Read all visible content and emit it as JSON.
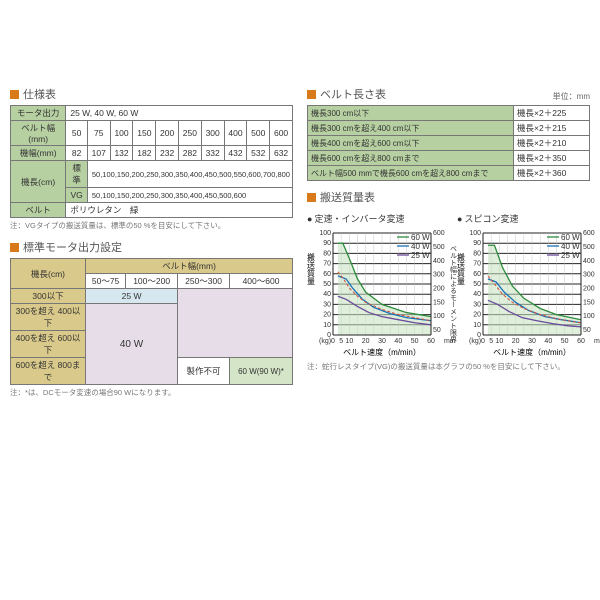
{
  "headings": {
    "spec": "仕様表",
    "belt_len": "ベルト長さ表",
    "motor_std": "標準モータ出力設定",
    "capacity": "搬送質量表",
    "chart_inv": "定速・インバータ変速",
    "chart_spk": "スピコン変速",
    "unit_mm": "単位：mm"
  },
  "spec": {
    "rows": {
      "motor_out": {
        "label": "モータ出力",
        "value": "25 W, 40 W, 60 W"
      },
      "belt_w": {
        "label": "ベルト幅(mm)",
        "cells": [
          "50",
          "75",
          "100",
          "150",
          "200",
          "250",
          "300",
          "400",
          "500",
          "600"
        ]
      },
      "mach_w": {
        "label": "機幅(mm)",
        "cells": [
          "82",
          "107",
          "132",
          "182",
          "232",
          "282",
          "332",
          "432",
          "532",
          "632"
        ]
      },
      "len_std": {
        "label1": "機長(cm)",
        "label2": "標準",
        "value": "50,100,150,200,250,300,350,400,450,500,550,600,700,800"
      },
      "len_vg": {
        "label2": "VG",
        "value": "50,100,150,200,250,300,350,400,450,500,600"
      },
      "belt": {
        "label": "ベルト",
        "value": "ポリウレタン　緑"
      }
    },
    "note": "注：VGタイプの搬送質量は、標準の50 %を目安にして下さい。"
  },
  "belt_len": {
    "rows": [
      {
        "l": "機長300 cm以下",
        "r": "機長×2＋225"
      },
      {
        "l": "機長300 cmを超え400 cm以下",
        "r": "機長×2＋215"
      },
      {
        "l": "機長400 cmを超え600 cm以下",
        "r": "機長×2＋210"
      },
      {
        "l": "機長600 cmを超え800 cmまで",
        "r": "機長×2＋350"
      },
      {
        "l": "ベルト幅500 mmで機長600 cmを超え800 cmまで",
        "r": "機長×2＋360"
      }
    ]
  },
  "motor_std": {
    "col_hdr": "ベルト幅(mm)",
    "row_hdr": "機長(cm)",
    "cols": [
      "50～75",
      "100～200",
      "250～300",
      "400～600"
    ],
    "rows": [
      "300以下",
      "300を超え 400以下",
      "400を超え 600以下",
      "600を超え 800まで"
    ],
    "w25": "25 W",
    "w40": "40 W",
    "w60": "60 W(90 W)*",
    "na": "製作不可",
    "note": "注：*は、DCモータ変速の場合90 Wになります。"
  },
  "charts": {
    "ylabel": "搬送質量",
    "yunit": "(kg)",
    "xlabel": "ベルト速度（m/min）",
    "rlabel1": "ベルト幅による",
    "rlabel2": "モーメント限界",
    "runit": "mm",
    "ymax": 100,
    "ystep": 10,
    "xmax": 60,
    "xstep": 5,
    "r_vals": [
      50,
      100,
      150,
      200,
      300,
      400,
      500,
      600
    ],
    "legend": {
      "l60": "60 W",
      "l40": "40 W",
      "l25": "25 W"
    },
    "inv": {
      "fill60": [
        [
          3,
          90
        ],
        [
          6,
          90
        ],
        [
          10,
          75
        ],
        [
          15,
          55
        ],
        [
          20,
          42
        ],
        [
          30,
          30
        ],
        [
          45,
          22
        ],
        [
          60,
          18
        ],
        [
          60,
          0
        ],
        [
          3,
          0
        ]
      ],
      "s60": [
        [
          3,
          90
        ],
        [
          6,
          90
        ],
        [
          10,
          75
        ],
        [
          15,
          55
        ],
        [
          20,
          42
        ],
        [
          30,
          30
        ],
        [
          45,
          22
        ],
        [
          60,
          18
        ]
      ],
      "s40": [
        [
          3,
          58
        ],
        [
          8,
          55
        ],
        [
          12,
          46
        ],
        [
          18,
          35
        ],
        [
          25,
          27
        ],
        [
          35,
          21
        ],
        [
          45,
          17
        ],
        [
          60,
          14
        ]
      ],
      "s25": [
        [
          3,
          38
        ],
        [
          8,
          35
        ],
        [
          15,
          28
        ],
        [
          22,
          22
        ],
        [
          30,
          18
        ],
        [
          40,
          15
        ],
        [
          50,
          12
        ],
        [
          60,
          10
        ]
      ],
      "dash": [
        [
          3,
          62
        ],
        [
          6,
          56
        ],
        [
          10,
          46
        ],
        [
          15,
          38
        ],
        [
          20,
          32
        ],
        [
          30,
          25
        ],
        [
          40,
          20
        ],
        [
          50,
          17
        ],
        [
          60,
          14
        ]
      ]
    },
    "spk": {
      "fill60": [
        [
          3,
          88
        ],
        [
          7,
          88
        ],
        [
          12,
          66
        ],
        [
          18,
          48
        ],
        [
          25,
          36
        ],
        [
          35,
          26
        ],
        [
          45,
          20
        ],
        [
          60,
          15
        ],
        [
          60,
          0
        ],
        [
          3,
          0
        ]
      ],
      "s60": [
        [
          3,
          88
        ],
        [
          7,
          88
        ],
        [
          12,
          66
        ],
        [
          18,
          48
        ],
        [
          25,
          36
        ],
        [
          35,
          26
        ],
        [
          45,
          20
        ],
        [
          60,
          15
        ]
      ],
      "s40": [
        [
          3,
          55
        ],
        [
          8,
          52
        ],
        [
          13,
          42
        ],
        [
          20,
          32
        ],
        [
          28,
          24
        ],
        [
          38,
          18
        ],
        [
          48,
          15
        ],
        [
          60,
          12
        ]
      ],
      "s25": [
        [
          3,
          34
        ],
        [
          9,
          30
        ],
        [
          16,
          23
        ],
        [
          24,
          17
        ],
        [
          33,
          14
        ],
        [
          43,
          11
        ],
        [
          52,
          9
        ],
        [
          60,
          8
        ]
      ],
      "dash": [
        [
          3,
          58
        ],
        [
          7,
          50
        ],
        [
          12,
          40
        ],
        [
          18,
          32
        ],
        [
          25,
          26
        ],
        [
          35,
          20
        ],
        [
          45,
          16
        ],
        [
          55,
          13
        ],
        [
          60,
          12
        ]
      ]
    },
    "note": "注：蛇行レスタイプ(VG)の搬送質量は本グラフの50 %を目安にして下さい。"
  }
}
